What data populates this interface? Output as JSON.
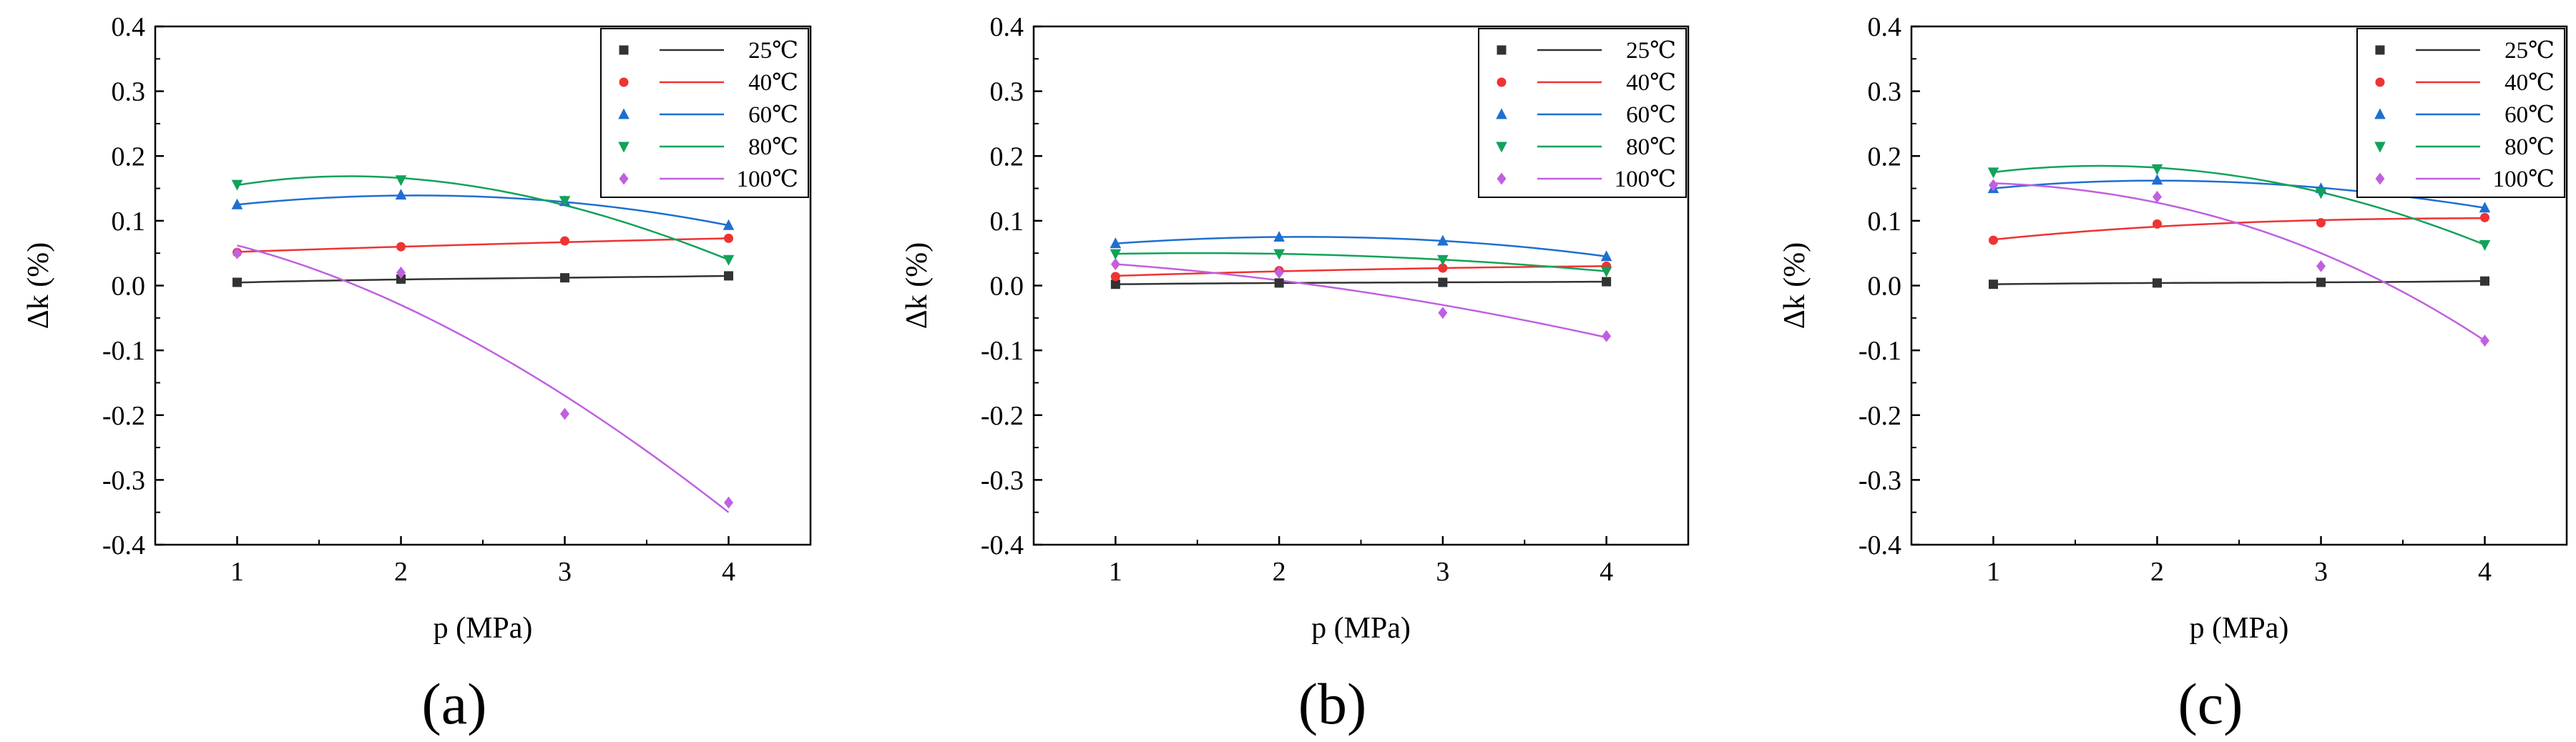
{
  "chart_data": [
    {
      "type": "scatter",
      "panel": "(a)",
      "xlabel": "p (MPa)",
      "ylabel": "Δk (%)",
      "xlim": [
        0.5,
        4.5
      ],
      "ylim": [
        -0.4,
        0.4
      ],
      "x_ticks": [
        "1",
        "2",
        "3",
        "4"
      ],
      "y_ticks": [
        "-0.4",
        "-0.3",
        "-0.2",
        "-0.1",
        "0.0",
        "0.1",
        "0.2",
        "0.3",
        "0.4"
      ],
      "legend": "top-right",
      "series": [
        {
          "name": "25℃",
          "color": "#333333",
          "marker": "square",
          "x": [
            1,
            2,
            3,
            4
          ],
          "values": [
            0.005,
            0.01,
            0.012,
            0.015
          ],
          "fit": [
            0.0047,
            0.0094,
            0.0122,
            0.0149
          ]
        },
        {
          "name": "40℃",
          "color": "#ee3333",
          "marker": "circle",
          "x": [
            1,
            2,
            3,
            4
          ],
          "values": [
            0.051,
            0.06,
            0.069,
            0.073
          ],
          "fit": [
            0.052,
            0.06,
            0.067,
            0.073
          ]
        },
        {
          "name": "60℃",
          "color": "#1f6fd0",
          "marker": "triangle-up",
          "x": [
            1,
            2,
            3,
            4
          ],
          "values": [
            0.125,
            0.14,
            0.13,
            0.093
          ],
          "fit": [
            0.125,
            0.139,
            0.129,
            0.093
          ]
        },
        {
          "name": "80℃",
          "color": "#12a25a",
          "marker": "triangle-down",
          "x": [
            1,
            2,
            3,
            4
          ],
          "values": [
            0.156,
            0.163,
            0.131,
            0.04
          ],
          "fit": [
            0.155,
            0.166,
            0.124,
            0.04
          ]
        },
        {
          "name": "100℃",
          "color": "#c060e0",
          "marker": "diamond",
          "x": [
            1,
            2,
            3,
            4
          ],
          "values": [
            0.05,
            0.02,
            -0.198,
            -0.335
          ],
          "fit": [
            0.062,
            -0.03,
            -0.17,
            -0.35
          ]
        }
      ]
    },
    {
      "type": "scatter",
      "panel": "(b)",
      "xlabel": "p (MPa)",
      "ylabel": "Δk (%)",
      "xlim": [
        0.5,
        4.5
      ],
      "ylim": [
        -0.4,
        0.4
      ],
      "x_ticks": [
        "1",
        "2",
        "3",
        "4"
      ],
      "y_ticks": [
        "-0.4",
        "-0.3",
        "-0.2",
        "-0.1",
        "0.0",
        "0.1",
        "0.2",
        "0.3",
        "0.4"
      ],
      "legend": "top-right",
      "series": [
        {
          "name": "25℃",
          "color": "#333333",
          "marker": "square",
          "x": [
            1,
            2,
            3,
            4
          ],
          "values": [
            0.002,
            0.004,
            0.005,
            0.006
          ],
          "fit": [
            0.002,
            0.004,
            0.005,
            0.006
          ]
        },
        {
          "name": "40℃",
          "color": "#ee3333",
          "marker": "circle",
          "x": [
            1,
            2,
            3,
            4
          ],
          "values": [
            0.014,
            0.023,
            0.027,
            0.03
          ],
          "fit": [
            0.015,
            0.022,
            0.027,
            0.03
          ]
        },
        {
          "name": "60℃",
          "color": "#1f6fd0",
          "marker": "triangle-up",
          "x": [
            1,
            2,
            3,
            4
          ],
          "values": [
            0.065,
            0.075,
            0.069,
            0.045
          ],
          "fit": [
            0.065,
            0.075,
            0.069,
            0.045
          ]
        },
        {
          "name": "80℃",
          "color": "#12a25a",
          "marker": "triangle-down",
          "x": [
            1,
            2,
            3,
            4
          ],
          "values": [
            0.049,
            0.049,
            0.04,
            0.022
          ],
          "fit": [
            0.049,
            0.049,
            0.04,
            0.022
          ]
        },
        {
          "name": "100℃",
          "color": "#c060e0",
          "marker": "diamond",
          "x": [
            1,
            2,
            3,
            4
          ],
          "values": [
            0.033,
            0.02,
            -0.042,
            -0.078
          ],
          "fit": [
            0.033,
            0.008,
            -0.03,
            -0.08
          ]
        }
      ]
    },
    {
      "type": "scatter",
      "panel": "(c)",
      "xlabel": "p (MPa)",
      "ylabel": "Δk (%)",
      "xlim": [
        0.5,
        4.5
      ],
      "ylim": [
        -0.4,
        0.4
      ],
      "x_ticks": [
        "1",
        "2",
        "3",
        "4"
      ],
      "y_ticks": [
        "-0.4",
        "-0.3",
        "-0.2",
        "-0.1",
        "0.0",
        "0.1",
        "0.2",
        "0.3",
        "0.4"
      ],
      "legend": "top-right",
      "series": [
        {
          "name": "25℃",
          "color": "#333333",
          "marker": "square",
          "x": [
            1,
            2,
            3,
            4
          ],
          "values": [
            0.002,
            0.004,
            0.005,
            0.007
          ],
          "fit": [
            0.002,
            0.004,
            0.005,
            0.007
          ]
        },
        {
          "name": "40℃",
          "color": "#ee3333",
          "marker": "circle",
          "x": [
            1,
            2,
            3,
            4
          ],
          "values": [
            0.07,
            0.095,
            0.097,
            0.105
          ],
          "fit": [
            0.071,
            0.091,
            0.101,
            0.104
          ]
        },
        {
          "name": "60℃",
          "color": "#1f6fd0",
          "marker": "triangle-up",
          "x": [
            1,
            2,
            3,
            4
          ],
          "values": [
            0.15,
            0.163,
            0.15,
            0.12
          ],
          "fit": [
            0.15,
            0.162,
            0.151,
            0.12
          ]
        },
        {
          "name": "80℃",
          "color": "#12a25a",
          "marker": "triangle-down",
          "x": [
            1,
            2,
            3,
            4
          ],
          "values": [
            0.175,
            0.18,
            0.143,
            0.063
          ],
          "fit": [
            0.175,
            0.182,
            0.144,
            0.063
          ]
        },
        {
          "name": "100℃",
          "color": "#c060e0",
          "marker": "diamond",
          "x": [
            1,
            2,
            3,
            4
          ],
          "values": [
            0.155,
            0.137,
            0.03,
            -0.085
          ],
          "fit": [
            0.158,
            0.128,
            0.05,
            -0.085
          ]
        }
      ]
    }
  ]
}
